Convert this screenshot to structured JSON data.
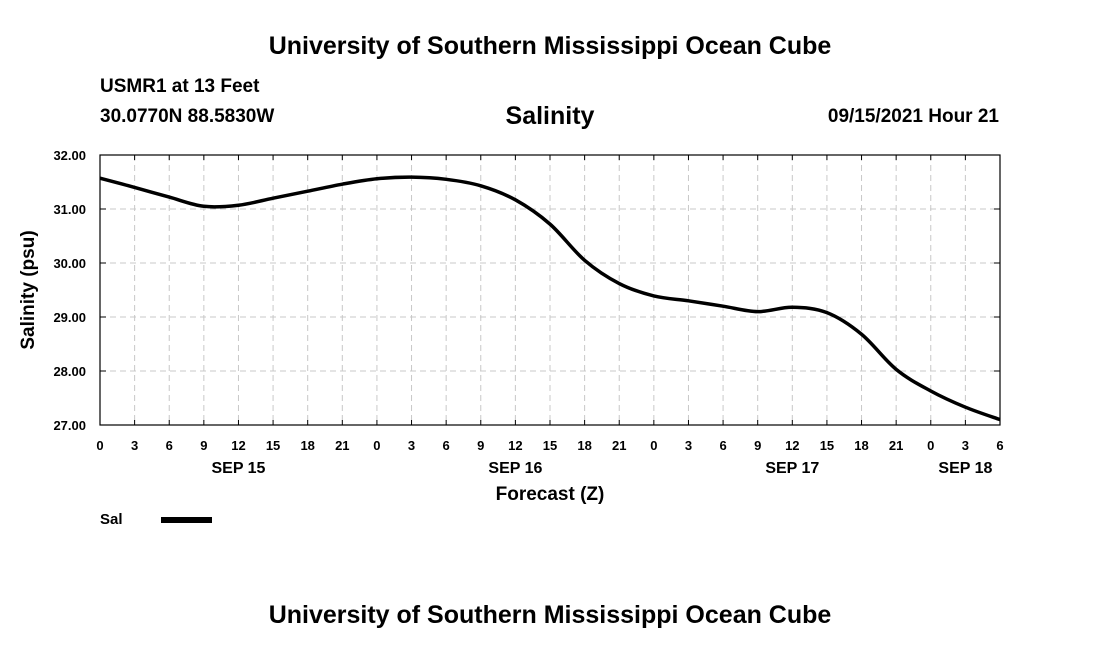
{
  "header": {
    "title": "University of Southern Mississippi Ocean Cube",
    "station": "USMR1 at 13 Feet",
    "coords": "30.0770N  88.5830W",
    "datetime": "09/15/2021 Hour 21"
  },
  "footer": {
    "title": "University of Southern Mississippi Ocean Cube"
  },
  "chart_data": {
    "type": "line",
    "title": "Salinity",
    "xlabel": "Forecast (Z)",
    "ylabel": "Salinity (psu)",
    "xlim": [
      0,
      78
    ],
    "ylim": [
      27.0,
      32.0
    ],
    "grid": true,
    "x_ticks": [
      0,
      3,
      6,
      9,
      12,
      15,
      18,
      21,
      24,
      27,
      30,
      33,
      36,
      39,
      42,
      45,
      48,
      51,
      54,
      57,
      60,
      63,
      66,
      69,
      72,
      75,
      78
    ],
    "x_tick_labels": [
      "0",
      "3",
      "6",
      "9",
      "12",
      "15",
      "18",
      "21",
      "0",
      "3",
      "6",
      "9",
      "12",
      "15",
      "18",
      "21",
      "0",
      "3",
      "6",
      "9",
      "12",
      "15",
      "18",
      "21",
      "0",
      "3",
      "6"
    ],
    "y_ticks": [
      27.0,
      28.0,
      29.0,
      30.0,
      31.0,
      32.0
    ],
    "y_tick_labels": [
      "27.00",
      "28.00",
      "29.00",
      "30.00",
      "31.00",
      "32.00"
    ],
    "date_labels": [
      {
        "x": 12,
        "label": "SEP 15"
      },
      {
        "x": 36,
        "label": "SEP 16"
      },
      {
        "x": 60,
        "label": "SEP 17"
      },
      {
        "x": 75,
        "label": "SEP 18"
      }
    ],
    "series": [
      {
        "name": "Sal",
        "x": [
          0,
          3,
          6,
          9,
          12,
          15,
          18,
          21,
          24,
          27,
          30,
          33,
          36,
          39,
          42,
          45,
          48,
          51,
          54,
          57,
          60,
          63,
          66,
          69,
          72,
          75,
          78
        ],
        "values": [
          31.57,
          31.4,
          31.22,
          31.05,
          31.07,
          31.2,
          31.33,
          31.46,
          31.56,
          31.59,
          31.55,
          31.43,
          31.17,
          30.72,
          30.05,
          29.62,
          29.39,
          29.3,
          29.2,
          29.1,
          29.18,
          29.08,
          28.68,
          28.03,
          27.63,
          27.33,
          27.1
        ]
      }
    ],
    "legend": {
      "position": "bottom-left",
      "label": "Sal"
    }
  }
}
